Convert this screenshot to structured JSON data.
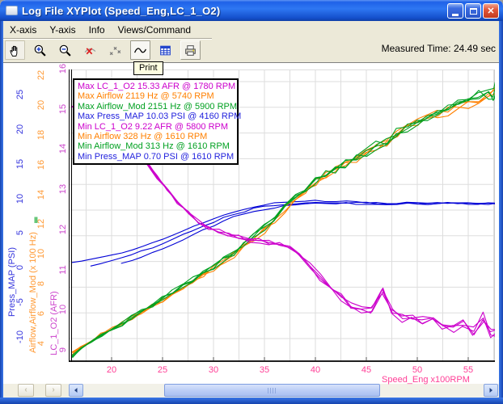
{
  "window": {
    "title": "Log File XYPlot (Speed_Eng,LC_1_O2)",
    "controls": {
      "minimize": "minimize",
      "maximize": "maximize",
      "close": "✕"
    }
  },
  "menu": {
    "items": [
      {
        "label": "X-axis"
      },
      {
        "label": "Y-axis"
      },
      {
        "label": "Info"
      },
      {
        "label": "Views/Command"
      }
    ]
  },
  "toolbar": {
    "measured_time": "Measured Time: 24.49 sec",
    "tooltip": "Print",
    "buttons": [
      "pan",
      "zoom-in",
      "zoom-out",
      "zoom-reset",
      "scatter-view",
      "line-view",
      "table-view",
      "print"
    ]
  },
  "legend": {
    "entries": [
      {
        "text": "Max LC_1_O2 15.33 AFR @ 1780 RPM",
        "color": "#CC00CC"
      },
      {
        "text": "Max Airflow 2119 Hz @ 5740 RPM",
        "color": "#FF8000"
      },
      {
        "text": "Max Airflow_Mod 2151 Hz @ 5900 RPM",
        "color": "#00A020"
      },
      {
        "text": "Max Press_MAP 10.03 PSI @ 4160 RPM",
        "color": "#2222DD"
      },
      {
        "text": "Min LC_1_O2 9.22 AFR @ 5800 RPM",
        "color": "#CC00CC"
      },
      {
        "text": "Min Airflow 328 Hz @ 1610 RPM",
        "color": "#FF8000"
      },
      {
        "text": "Min Airflow_Mod 313 Hz @ 1610 RPM",
        "color": "#00A020"
      },
      {
        "text": "Min Press_MAP 0.70 PSI @ 1610 RPM",
        "color": "#2222DD"
      }
    ]
  },
  "axes": {
    "x": {
      "label": "Speed_Eng x100RPM",
      "color": "#FF3E96",
      "ticks": [
        20,
        25,
        30,
        35,
        40,
        45,
        50,
        55
      ]
    },
    "y": [
      {
        "title": "Press_MAP (PSI)",
        "color": "#3333DD",
        "scale": "psi",
        "ticks": [
          25,
          20,
          15,
          10,
          5,
          0,
          -5,
          -10
        ]
      },
      {
        "title": "Airflow,Airflow_Mod (x 100 Hz)",
        "color": "#FF9933",
        "scale": "hz",
        "ticks": [
          22,
          20,
          18,
          16,
          14,
          12,
          10,
          8,
          6,
          4
        ],
        "marker": "‖",
        "marker_color": "#00A020"
      },
      {
        "title": "LC_1_O2 (AFR)",
        "color": "#CC44CC",
        "scale": "afr",
        "ticks": [
          16,
          15,
          14,
          13,
          12,
          11,
          10,
          9
        ]
      }
    ]
  },
  "chart_data": {
    "type": "line",
    "title": "Log File XYPlot (Speed_Eng,LC_1_O2)",
    "xlabel": "Speed_Eng x100RPM",
    "x_range": [
      16.1,
      57.8
    ],
    "grid": true,
    "y_axes": {
      "psi": {
        "label": "Press_MAP (PSI)",
        "range": [
          -10,
          25
        ]
      },
      "hz": {
        "label": "Airflow,Airflow_Mod (x 100 Hz)",
        "range": [
          3,
          22.5
        ]
      },
      "afr": {
        "label": "LC_1_O2 (AFR)",
        "range": [
          9,
          16
        ]
      }
    },
    "stats": {
      "max": [
        {
          "series": "LC_1_O2",
          "value": 15.33,
          "unit": "AFR",
          "rpm": 1780
        },
        {
          "series": "Airflow",
          "value": 2119,
          "unit": "Hz",
          "rpm": 5740
        },
        {
          "series": "Airflow_Mod",
          "value": 2151,
          "unit": "Hz",
          "rpm": 5900
        },
        {
          "series": "Press_MAP",
          "value": 10.03,
          "unit": "PSI",
          "rpm": 4160
        }
      ],
      "min": [
        {
          "series": "LC_1_O2",
          "value": 9.22,
          "unit": "AFR",
          "rpm": 5800
        },
        {
          "series": "Airflow",
          "value": 328,
          "unit": "Hz",
          "rpm": 1610
        },
        {
          "series": "Airflow_Mod",
          "value": 313,
          "unit": "Hz",
          "rpm": 1610
        },
        {
          "series": "Press_MAP",
          "value": 0.7,
          "unit": "PSI",
          "rpm": 1610
        }
      ]
    },
    "series": [
      {
        "name": "Press_MAP",
        "unit": "PSI",
        "color": "#0000D6",
        "scale": "psi",
        "points": [
          [
            16.1,
            0.7
          ],
          [
            17,
            0.9
          ],
          [
            18,
            1.15
          ],
          [
            19,
            1.45
          ],
          [
            20,
            1.8
          ],
          [
            21,
            2.2
          ],
          [
            22,
            2.65
          ],
          [
            23,
            3.1
          ],
          [
            24,
            3.6
          ],
          [
            25,
            4.15
          ],
          [
            26,
            4.7
          ],
          [
            27,
            5.3
          ],
          [
            28,
            5.9
          ],
          [
            29,
            6.5
          ],
          [
            30,
            7.05
          ],
          [
            31,
            7.6
          ],
          [
            32,
            8.1
          ],
          [
            33,
            8.5
          ],
          [
            34,
            8.85
          ],
          [
            35,
            9.1
          ],
          [
            36,
            9.3
          ],
          [
            37,
            9.45
          ],
          [
            38,
            9.55
          ],
          [
            39,
            9.6
          ],
          [
            40,
            9.62
          ],
          [
            41,
            9.65
          ],
          [
            42,
            9.6
          ],
          [
            43,
            9.55
          ],
          [
            44,
            9.5
          ],
          [
            45,
            9.45
          ],
          [
            46,
            9.4
          ],
          [
            47,
            9.35
          ],
          [
            48,
            9.3
          ],
          [
            49,
            9.3
          ],
          [
            50,
            9.25
          ],
          [
            51,
            9.3
          ],
          [
            52,
            9.35
          ],
          [
            53,
            9.3
          ],
          [
            54,
            9.25
          ],
          [
            55,
            9.3
          ],
          [
            56,
            9.25
          ],
          [
            57,
            9.2
          ],
          [
            57.8,
            9.25
          ]
        ],
        "runs": [
          {
            "seed": 5,
            "j0": 0.8,
            "j1": 1.6,
            "dy0": 0,
            "startV": 16.1
          },
          {
            "seed": 6,
            "j0": 0.8,
            "j1": 1.6,
            "dy0": 5,
            "startV": 17.3
          },
          {
            "seed": 7,
            "j0": 0.8,
            "j1": 1.6,
            "dy0": 9,
            "startV": 20.6
          }
        ]
      },
      {
        "name": "Airflow",
        "unit": "x100 Hz",
        "color": "#FF8000",
        "scale": "hz",
        "points": [
          [
            16.1,
            3.28
          ],
          [
            17,
            3.7
          ],
          [
            18,
            4.15
          ],
          [
            19,
            4.6
          ],
          [
            20,
            5.0
          ],
          [
            21,
            5.35
          ],
          [
            22,
            5.7
          ],
          [
            23,
            6.1
          ],
          [
            24,
            6.5
          ],
          [
            25,
            6.9
          ],
          [
            26,
            7.3
          ],
          [
            27,
            7.75
          ],
          [
            28,
            8.2
          ],
          [
            29,
            8.6
          ],
          [
            30,
            9.0
          ],
          [
            31,
            9.45
          ],
          [
            32,
            9.95
          ],
          [
            33,
            10.45
          ],
          [
            34,
            11.0
          ],
          [
            35,
            11.6
          ],
          [
            36,
            12.25
          ],
          [
            37,
            12.95
          ],
          [
            38,
            13.6
          ],
          [
            39,
            14.2
          ],
          [
            40,
            14.8
          ],
          [
            41,
            15.25
          ],
          [
            42,
            15.6
          ],
          [
            43,
            15.95
          ],
          [
            44,
            16.3
          ],
          [
            45,
            16.7
          ],
          [
            46,
            17.1
          ],
          [
            47,
            17.5
          ],
          [
            48,
            17.95
          ],
          [
            49,
            18.4
          ],
          [
            50,
            18.8
          ],
          [
            51,
            19.1
          ],
          [
            52,
            19.35
          ],
          [
            53,
            19.6
          ],
          [
            54,
            19.85
          ],
          [
            55,
            20.1
          ],
          [
            56,
            20.45
          ],
          [
            57,
            20.9
          ],
          [
            57.8,
            21.1
          ]
        ],
        "runs": [
          {
            "seed": 8,
            "j0": 2,
            "j1": 7
          },
          {
            "seed": 9,
            "j0": 2,
            "j1": 7
          },
          {
            "seed": 10,
            "j0": 2,
            "j1": 7
          }
        ]
      },
      {
        "name": "Airflow_Mod",
        "unit": "x100 Hz",
        "color": "#00A020",
        "scale": "hz",
        "points": [
          [
            16.1,
            3.13
          ],
          [
            17,
            3.6
          ],
          [
            18,
            4.1
          ],
          [
            19,
            4.55
          ],
          [
            20,
            4.95
          ],
          [
            21,
            5.3
          ],
          [
            22,
            5.75
          ],
          [
            23,
            6.2
          ],
          [
            24,
            6.6
          ],
          [
            25,
            7.0
          ],
          [
            26,
            7.45
          ],
          [
            27,
            7.9
          ],
          [
            28,
            8.3
          ],
          [
            29,
            8.7
          ],
          [
            30,
            9.1
          ],
          [
            31,
            9.6
          ],
          [
            32,
            10.1
          ],
          [
            33,
            10.6
          ],
          [
            34,
            11.15
          ],
          [
            35,
            11.75
          ],
          [
            36,
            12.4
          ],
          [
            37,
            13.1
          ],
          [
            38,
            13.75
          ],
          [
            39,
            14.35
          ],
          [
            40,
            14.9
          ],
          [
            41,
            15.35
          ],
          [
            42,
            15.7
          ],
          [
            43,
            16.05
          ],
          [
            44,
            16.45
          ],
          [
            45,
            16.85
          ],
          [
            46,
            17.25
          ],
          [
            47,
            17.65
          ],
          [
            48,
            18.1
          ],
          [
            49,
            18.5
          ],
          [
            50,
            18.9
          ],
          [
            51,
            19.2
          ],
          [
            52,
            19.45
          ],
          [
            53,
            19.7
          ],
          [
            54,
            19.95
          ],
          [
            55,
            20.2
          ],
          [
            56,
            20.6
          ],
          [
            57,
            20.8
          ],
          [
            57.5,
            20.7
          ],
          [
            57.8,
            21.5
          ]
        ],
        "runs": [
          {
            "seed": 11,
            "j0": 2,
            "j1": 8
          },
          {
            "seed": 12,
            "j0": 2,
            "j1": 8
          },
          {
            "seed": 13,
            "j0": 2,
            "j1": 8
          },
          {
            "seed": 14,
            "j0": 2,
            "j1": 8
          }
        ]
      },
      {
        "name": "LC_1_O2",
        "unit": "AFR",
        "color": "#CC00CC",
        "scale": "afr",
        "points": [
          [
            16.1,
            15.05
          ],
          [
            17,
            15.2
          ],
          [
            17.8,
            15.33
          ],
          [
            18.5,
            15.1
          ],
          [
            19.5,
            14.8
          ],
          [
            20.5,
            14.55
          ],
          [
            21.5,
            14.3
          ],
          [
            22.5,
            14.0
          ],
          [
            23.5,
            13.65
          ],
          [
            24.5,
            13.3
          ],
          [
            25.5,
            12.95
          ],
          [
            26.5,
            12.65
          ],
          [
            27.5,
            12.4
          ],
          [
            28.5,
            12.2
          ],
          [
            29.5,
            12.05
          ],
          [
            30.5,
            11.95
          ],
          [
            31.5,
            11.87
          ],
          [
            32.5,
            11.8
          ],
          [
            33.5,
            11.75
          ],
          [
            34.5,
            11.7
          ],
          [
            35.5,
            11.67
          ],
          [
            36.5,
            11.62
          ],
          [
            37.5,
            11.55
          ],
          [
            38.5,
            11.35
          ],
          [
            39.5,
            11.1
          ],
          [
            40.5,
            10.8
          ],
          [
            41.5,
            10.55
          ],
          [
            42.5,
            10.3
          ],
          [
            43.5,
            10.12
          ],
          [
            44.5,
            10.02
          ],
          [
            45.5,
            10.0
          ],
          [
            46.6,
            10.45
          ],
          [
            47.5,
            9.92
          ],
          [
            48.5,
            9.78
          ],
          [
            49.5,
            9.85
          ],
          [
            50.5,
            9.72
          ],
          [
            51.5,
            9.8
          ],
          [
            52.5,
            9.65
          ],
          [
            53.5,
            9.55
          ],
          [
            54.5,
            9.6
          ],
          [
            55.5,
            9.45
          ],
          [
            56.5,
            9.85
          ],
          [
            57.2,
            9.45
          ],
          [
            57.8,
            9.35
          ]
        ],
        "runs": [
          {
            "seed": 1,
            "j0": 1.2,
            "j1": 8
          },
          {
            "seed": 2,
            "j0": 1.2,
            "j1": 8
          },
          {
            "seed": 3,
            "j0": 1.2,
            "j1": 8
          },
          {
            "seed": 4,
            "j0": 1.2,
            "j1": 8
          }
        ]
      }
    ]
  }
}
